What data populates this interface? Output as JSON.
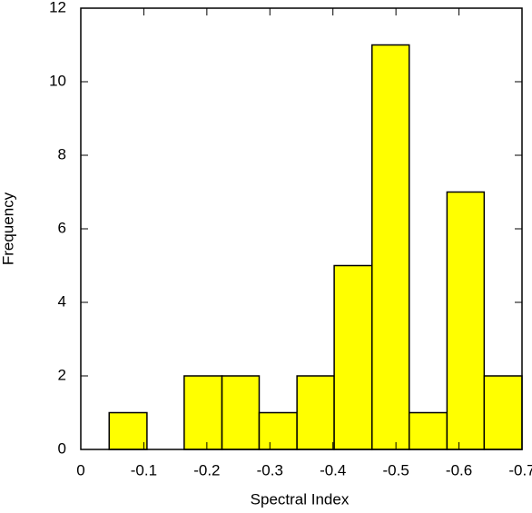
{
  "chart_data": {
    "type": "histogram",
    "xlabel": "Spectral Index",
    "ylabel": "Frequency",
    "bins": [
      -0.045,
      -0.105,
      -0.164,
      -0.224,
      -0.283,
      -0.343,
      -0.402,
      -0.462,
      -0.521,
      -0.581,
      -0.64,
      -0.7
    ],
    "values": [
      1,
      0,
      2,
      2,
      1,
      2,
      5,
      11,
      1,
      7,
      2
    ],
    "color": "#ffff00",
    "xlim": [
      0,
      -0.7
    ],
    "xticks": [
      0,
      -0.1,
      -0.2,
      -0.3,
      -0.4,
      -0.5,
      -0.6,
      -0.7
    ],
    "ylim": [
      0,
      12
    ],
    "yticks": [
      0,
      2,
      4,
      6,
      8,
      10,
      12
    ]
  }
}
